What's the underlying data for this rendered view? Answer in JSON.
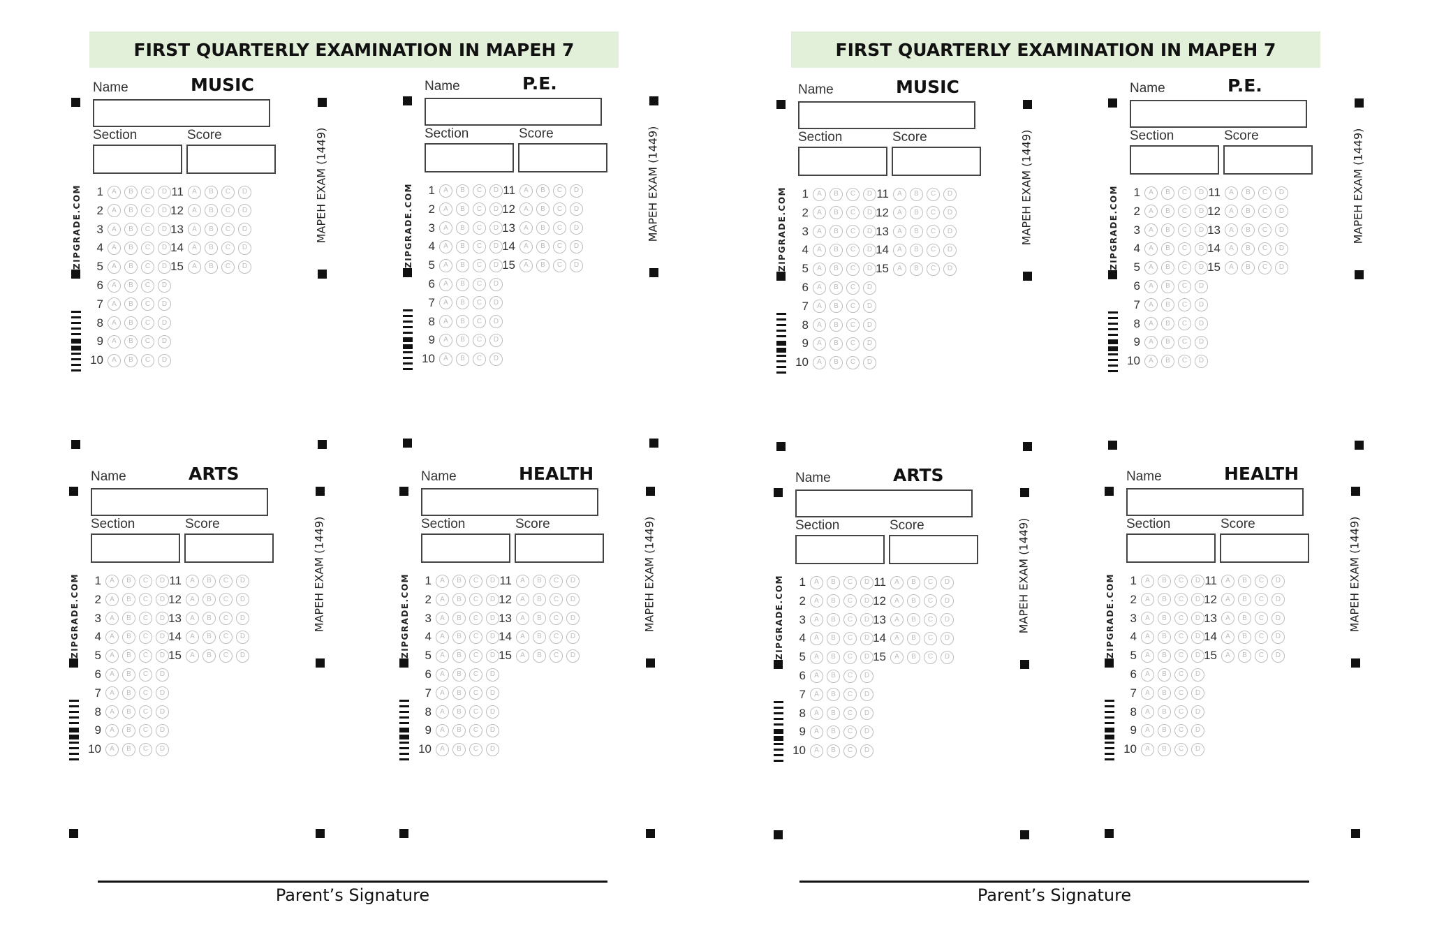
{
  "pages": [
    {
      "title": "FIRST QUARTERLY EXAMINATION IN MAPEH 7",
      "signature_label": "Parent’s Signature",
      "sheets": [
        {
          "subject": "MUSIC"
        },
        {
          "subject": "P.E."
        },
        {
          "subject": "ARTS"
        },
        {
          "subject": "HEALTH"
        }
      ]
    },
    {
      "title": "FIRST QUARTERLY EXAMINATION IN MAPEH 7",
      "signature_label": "Parent’s Signature",
      "sheets": [
        {
          "subject": "MUSIC"
        },
        {
          "subject": "P.E."
        },
        {
          "subject": "ARTS"
        },
        {
          "subject": "HEALTH"
        }
      ]
    }
  ],
  "form": {
    "name_label": "Name",
    "section_label": "Section",
    "score_label": "Score",
    "brand": "ZIPGRADE.COM",
    "exam_code": "MAPEH EXAM (1449)",
    "choices": [
      "A",
      "B",
      "C",
      "D"
    ],
    "question_numbers": [
      "1",
      "2",
      "3",
      "4",
      "5",
      "6",
      "7",
      "8",
      "9",
      "10",
      "11",
      "12",
      "13",
      "14",
      "15"
    ]
  },
  "colors": {
    "banner_bg": "#e2efd9",
    "bubble": "#bdbdbd",
    "ink": "#111111"
  }
}
